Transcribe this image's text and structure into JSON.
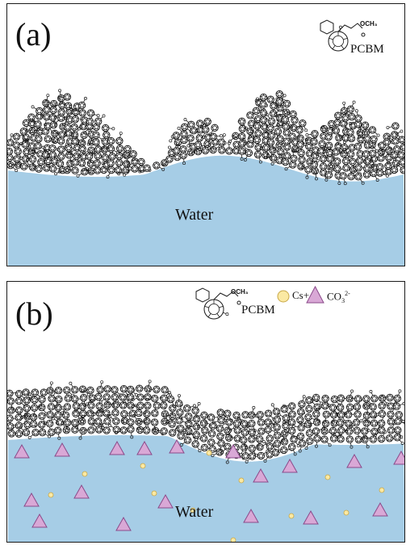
{
  "colors": {
    "water": "#a6cde6",
    "water_edge": "#ffffff",
    "molecule": "#1a1a1a",
    "ion_cs": "#fbe9a3",
    "ion_cs_stroke": "#c8a848",
    "ion_co3": "#d9a8d6",
    "ion_co3_stroke": "#8a4a8a"
  },
  "panel_a": {
    "label": "(a)",
    "water_label": "Water",
    "molecule_label": "PCBM",
    "molecule_group": "OCH₃"
  },
  "panel_b": {
    "label": "(b)",
    "water_label": "Water",
    "molecule_label": "PCBM",
    "molecule_group": "OCH₃",
    "legend": {
      "cs_label": "Cs+",
      "co3_label": "CO",
      "co3_sub": "3",
      "co3_sup": "2-"
    }
  },
  "icons": {
    "fullerene": "fullerene-icon",
    "cation": "circle-icon",
    "anion": "triangle-icon"
  }
}
